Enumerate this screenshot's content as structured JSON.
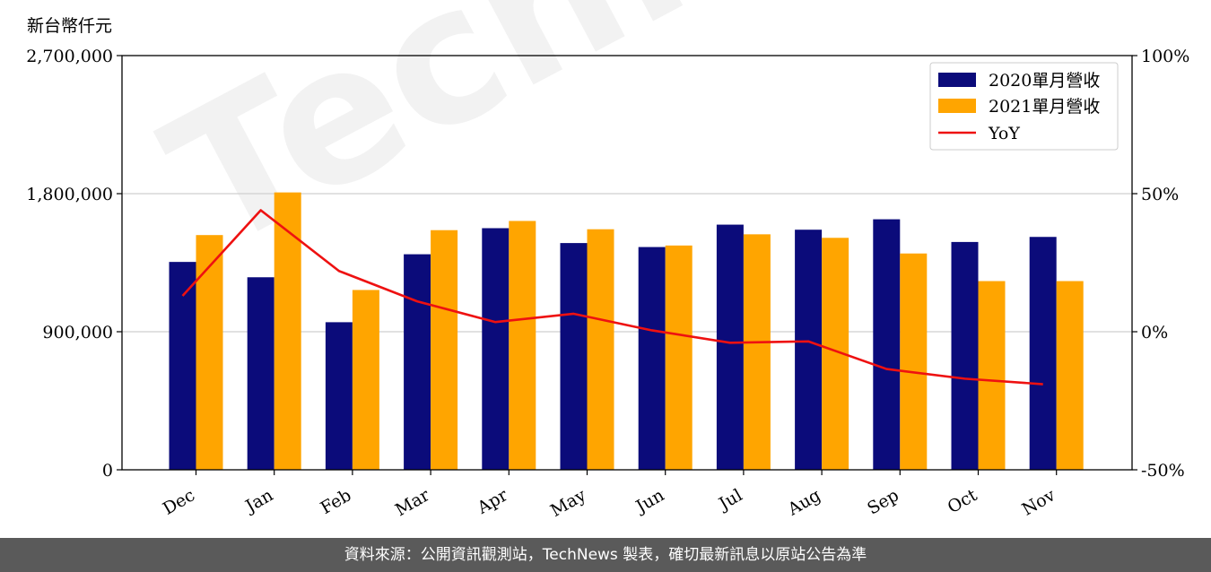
{
  "unit_label": "新台幣仟元",
  "footer_text": "資料來源：公開資訊觀測站，TechNews 製表，確切最新訊息以原站公告為準",
  "watermark_text": "TechNews",
  "colors": {
    "series_2020": "#0b0b7a",
    "series_2021": "#ffa500",
    "yoy": "#ee1111",
    "footer_bg": "#5a5a5a"
  },
  "chart_data": {
    "type": "bar",
    "categories": [
      "Dec",
      "Jan",
      "Feb",
      "Mar",
      "Apr",
      "May",
      "Jun",
      "Jul",
      "Aug",
      "Sep",
      "Oct",
      "Nov"
    ],
    "series": [
      {
        "name": "2020單月營收",
        "values": [
          1355000,
          1255000,
          962000,
          1405000,
          1575000,
          1478000,
          1452000,
          1598000,
          1565000,
          1633000,
          1485000,
          1518000
        ]
      },
      {
        "name": "2021單月營收",
        "values": [
          1530000,
          1808000,
          1172000,
          1562000,
          1622000,
          1568000,
          1462000,
          1535000,
          1512000,
          1410000,
          1230000,
          1230000
        ]
      }
    ],
    "line_series": {
      "name": "YoY",
      "values": [
        13,
        44,
        22,
        11,
        3.5,
        6.5,
        0.5,
        -4,
        -3.5,
        -13.5,
        -17,
        -19
      ]
    },
    "ylim": [
      0,
      2700000
    ],
    "yticks": [
      "0",
      "900,000",
      "1,800,000",
      "2,700,000"
    ],
    "y2lim": [
      -50,
      100
    ],
    "y2ticks": [
      "-50%",
      "0%",
      "50%",
      "100%"
    ],
    "grid": "horizontal",
    "legend_position": "top-right"
  }
}
